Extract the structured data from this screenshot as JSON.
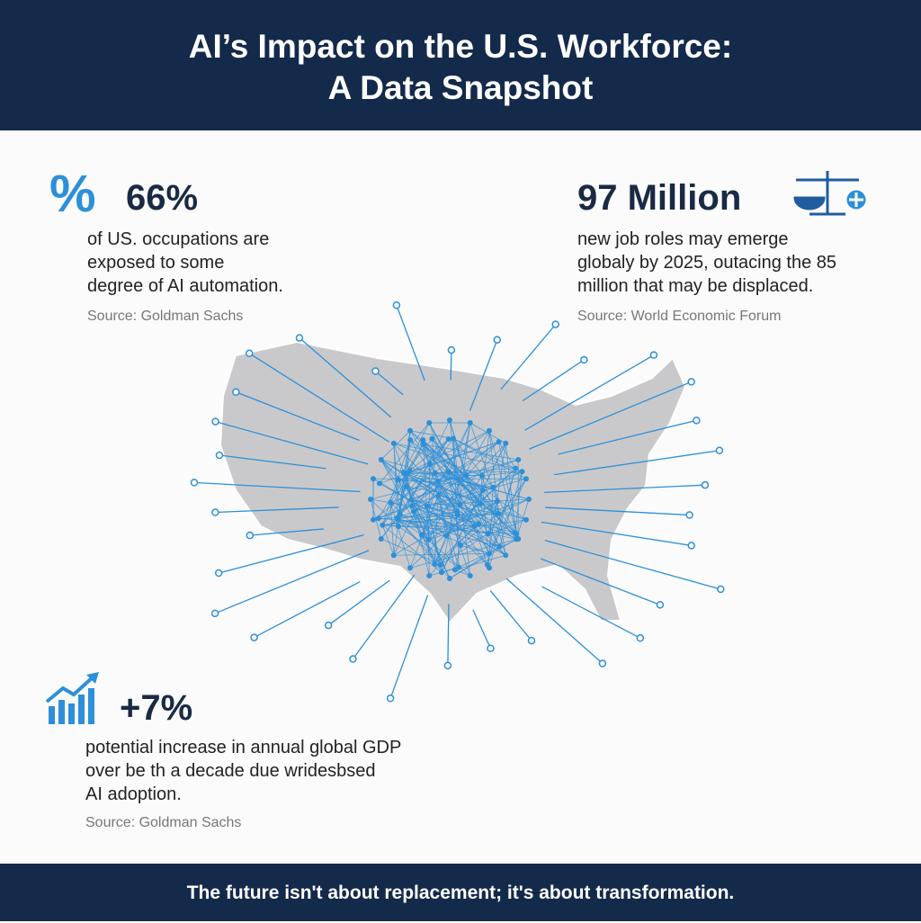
{
  "header": {
    "title_lines": [
      "AI’s Impact on the U.S. Workforce:",
      "A Data Snapshot"
    ]
  },
  "stats": [
    {
      "icon": "%",
      "value": "66%",
      "lines": [
        "of US. occupations are",
        "exposed to some",
        "degree of AI automation."
      ],
      "source": "Source: Goldman Sachs"
    },
    {
      "value": "97 Million",
      "lines": [
        "new job roles may emerge",
        "globaly by 2025, outacing the 85",
        "million that may be displaced."
      ],
      "source": "Source: World Economic Forum"
    },
    {
      "value": "+7%",
      "lines": [
        "potential increase in annual global GDP",
        "over be th a decade due wridesbsed",
        "AI adoption."
      ],
      "source": "Source: Goldman Sachs"
    }
  ],
  "footer": {
    "text": "The future isn't about replacement; it's about transformation."
  }
}
